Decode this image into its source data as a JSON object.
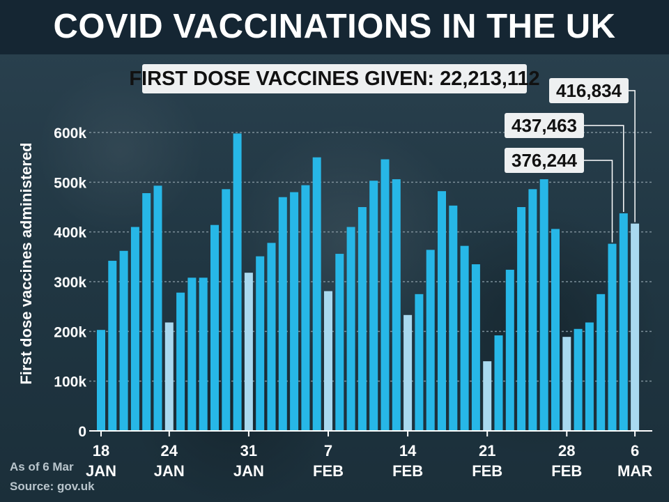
{
  "header": {
    "title": "COVID VACCINATIONS IN THE UK",
    "summary": "FIRST DOSE VACCINES GIVEN: 22,213,112"
  },
  "footer": {
    "as_of": "As of 6 Mar",
    "source": "Source: gov.uk"
  },
  "colors": {
    "bar_weekday": "#27b7e7",
    "bar_sunday": "#a9d9ef",
    "gridline": "#7d8f99",
    "callout_bg": "#eef0f1",
    "title_bar": "#152633"
  },
  "chart_data": {
    "type": "bar",
    "ylabel": "First dose vaccines administered",
    "xlabel": "",
    "ylim": [
      0,
      600000
    ],
    "yticks": [
      {
        "value": 0,
        "label": "0"
      },
      {
        "value": 100000,
        "label": "100k"
      },
      {
        "value": 200000,
        "label": "200k"
      },
      {
        "value": 300000,
        "label": "300k"
      },
      {
        "value": 400000,
        "label": "400k"
      },
      {
        "value": 500000,
        "label": "500k"
      },
      {
        "value": 600000,
        "label": "600k"
      }
    ],
    "grid": true,
    "xticks": [
      {
        "index": 0,
        "day": "18",
        "month": "JAN"
      },
      {
        "index": 6,
        "day": "24",
        "month": "JAN"
      },
      {
        "index": 13,
        "day": "31",
        "month": "JAN"
      },
      {
        "index": 20,
        "day": "7",
        "month": "FEB"
      },
      {
        "index": 27,
        "day": "14",
        "month": "FEB"
      },
      {
        "index": 34,
        "day": "21",
        "month": "FEB"
      },
      {
        "index": 41,
        "day": "28",
        "month": "FEB"
      },
      {
        "index": 47,
        "day": "6",
        "month": "MAR"
      }
    ],
    "sunday_indices": [
      6,
      13,
      20,
      27,
      34,
      41,
      47
    ],
    "values": [
      203000,
      342000,
      362000,
      410000,
      478000,
      493000,
      218000,
      278000,
      308000,
      308000,
      414000,
      486000,
      598000,
      318000,
      351000,
      378000,
      470000,
      480000,
      494000,
      550000,
      281000,
      356000,
      410000,
      450000,
      503000,
      546000,
      506000,
      233000,
      275000,
      364000,
      482000,
      453000,
      372000,
      335000,
      140000,
      192000,
      324000,
      450000,
      486000,
      506000,
      406000,
      189000,
      205000,
      218000,
      275000,
      376244,
      437463,
      416834
    ],
    "annotations": [
      {
        "label": "376,244",
        "index": 45
      },
      {
        "label": "437,463",
        "index": 46
      },
      {
        "label": "416,834",
        "index": 47
      }
    ]
  }
}
